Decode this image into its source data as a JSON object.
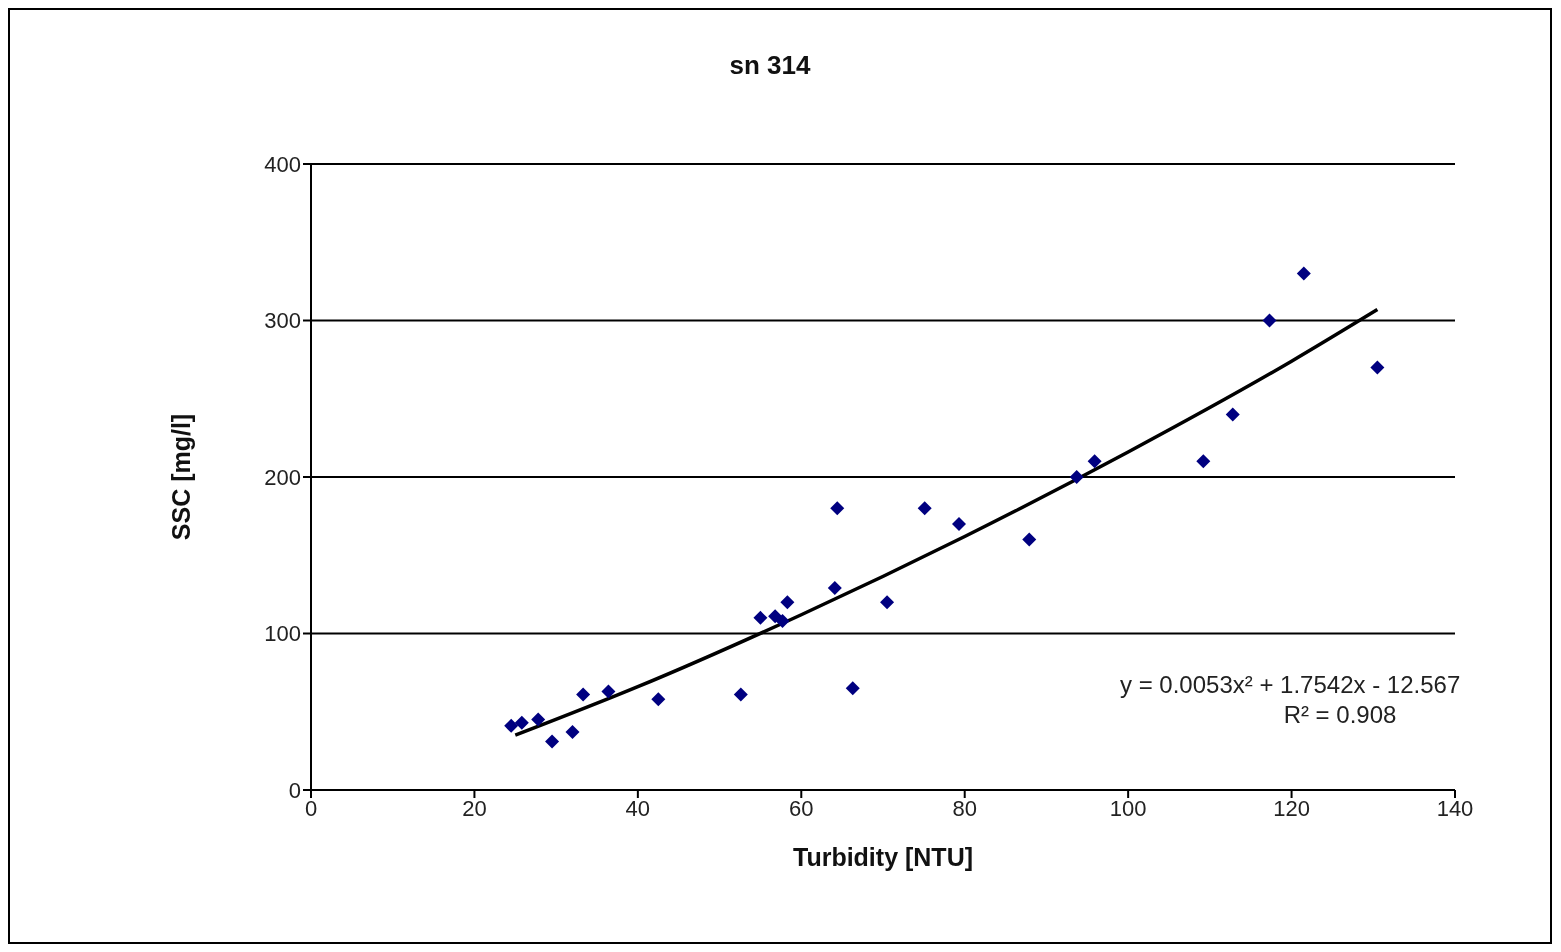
{
  "chart_data": {
    "type": "scatter",
    "title": "sn 314",
    "xlabel": "Turbidity [NTU]",
    "ylabel": "SSC [mg/l]",
    "xlim": [
      0,
      140
    ],
    "xticks": [
      0,
      20,
      40,
      60,
      80,
      100,
      120,
      140
    ],
    "ylim": [
      0,
      400
    ],
    "yticks": [
      0,
      100,
      200,
      300,
      400
    ],
    "grid": "y",
    "annotations": [
      "y = 0.0053x² + 1.7542x - 12.567",
      "R² = 0.908"
    ],
    "series": [
      {
        "color": "#000080",
        "marker": "diamond",
        "x": [
          24.5,
          25.8,
          27.8,
          29.5,
          32,
          33.3,
          36.4,
          42.5,
          52.6,
          55,
          56.8,
          57.7,
          58.3,
          64.1,
          64.4,
          66.3,
          70.5,
          75.1,
          79.3,
          87.9,
          93.7,
          95.9,
          109.2,
          112.8,
          117.3,
          121.5,
          130.5
        ],
        "values": [
          41,
          43,
          45,
          31,
          37,
          61,
          63,
          58,
          61,
          110,
          111,
          108,
          120,
          129,
          180,
          65,
          120,
          180,
          170,
          160,
          200,
          210,
          210,
          240,
          300,
          330,
          270
        ]
      },
      {
        "type": "line",
        "color": "#000000",
        "marker": "none",
        "line_style": "solid",
        "x": [
          25,
          40,
          60,
          80,
          100,
          120,
          130.5
        ],
        "values": [
          35,
          66,
          112,
          162,
          216,
          274,
          307
        ]
      }
    ]
  }
}
